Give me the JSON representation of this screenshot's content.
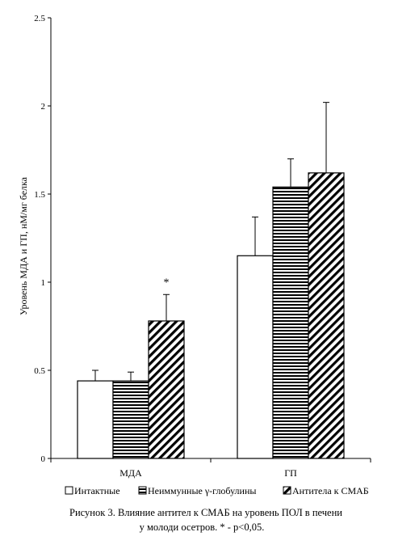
{
  "chart_data": {
    "type": "bar",
    "categories": [
      "МДА",
      "ГП"
    ],
    "series": [
      {
        "name": "Интактные",
        "values": [
          0.44,
          1.15
        ],
        "errors": [
          0.06,
          0.22
        ],
        "fill": "white"
      },
      {
        "name": "Неиммунные γ-глобулины",
        "values": [
          0.44,
          1.54
        ],
        "errors": [
          0.05,
          0.16
        ],
        "fill": "horizontal-stripes"
      },
      {
        "name": "Антитела к СМАБ",
        "values": [
          0.78,
          1.62
        ],
        "errors": [
          0.15,
          0.4
        ],
        "fill": "diagonal-stripes"
      }
    ],
    "significance": [
      {
        "category": "МДА",
        "series": "Антитела к СМАБ",
        "mark": "*"
      }
    ],
    "ylabel": "Уровень МДА и ГП, нМ/мг белка",
    "xlabel": "",
    "ylim": [
      0,
      2.5
    ],
    "yticks": [
      0,
      0.5,
      1,
      1.5,
      2,
      2.5
    ],
    "ytick_labels": [
      "0",
      "0.5",
      "1",
      "1.5",
      "2",
      "2.5"
    ],
    "grid": false,
    "legend_position": "bottom",
    "colors": {
      "stroke": "#000000",
      "background": "#ffffff"
    }
  },
  "caption": {
    "line1": "Рисунок 3. Влияние антител к СМАБ на уровень ПОЛ в печени",
    "line2": "у молоди осетров. * - p<0,05."
  }
}
